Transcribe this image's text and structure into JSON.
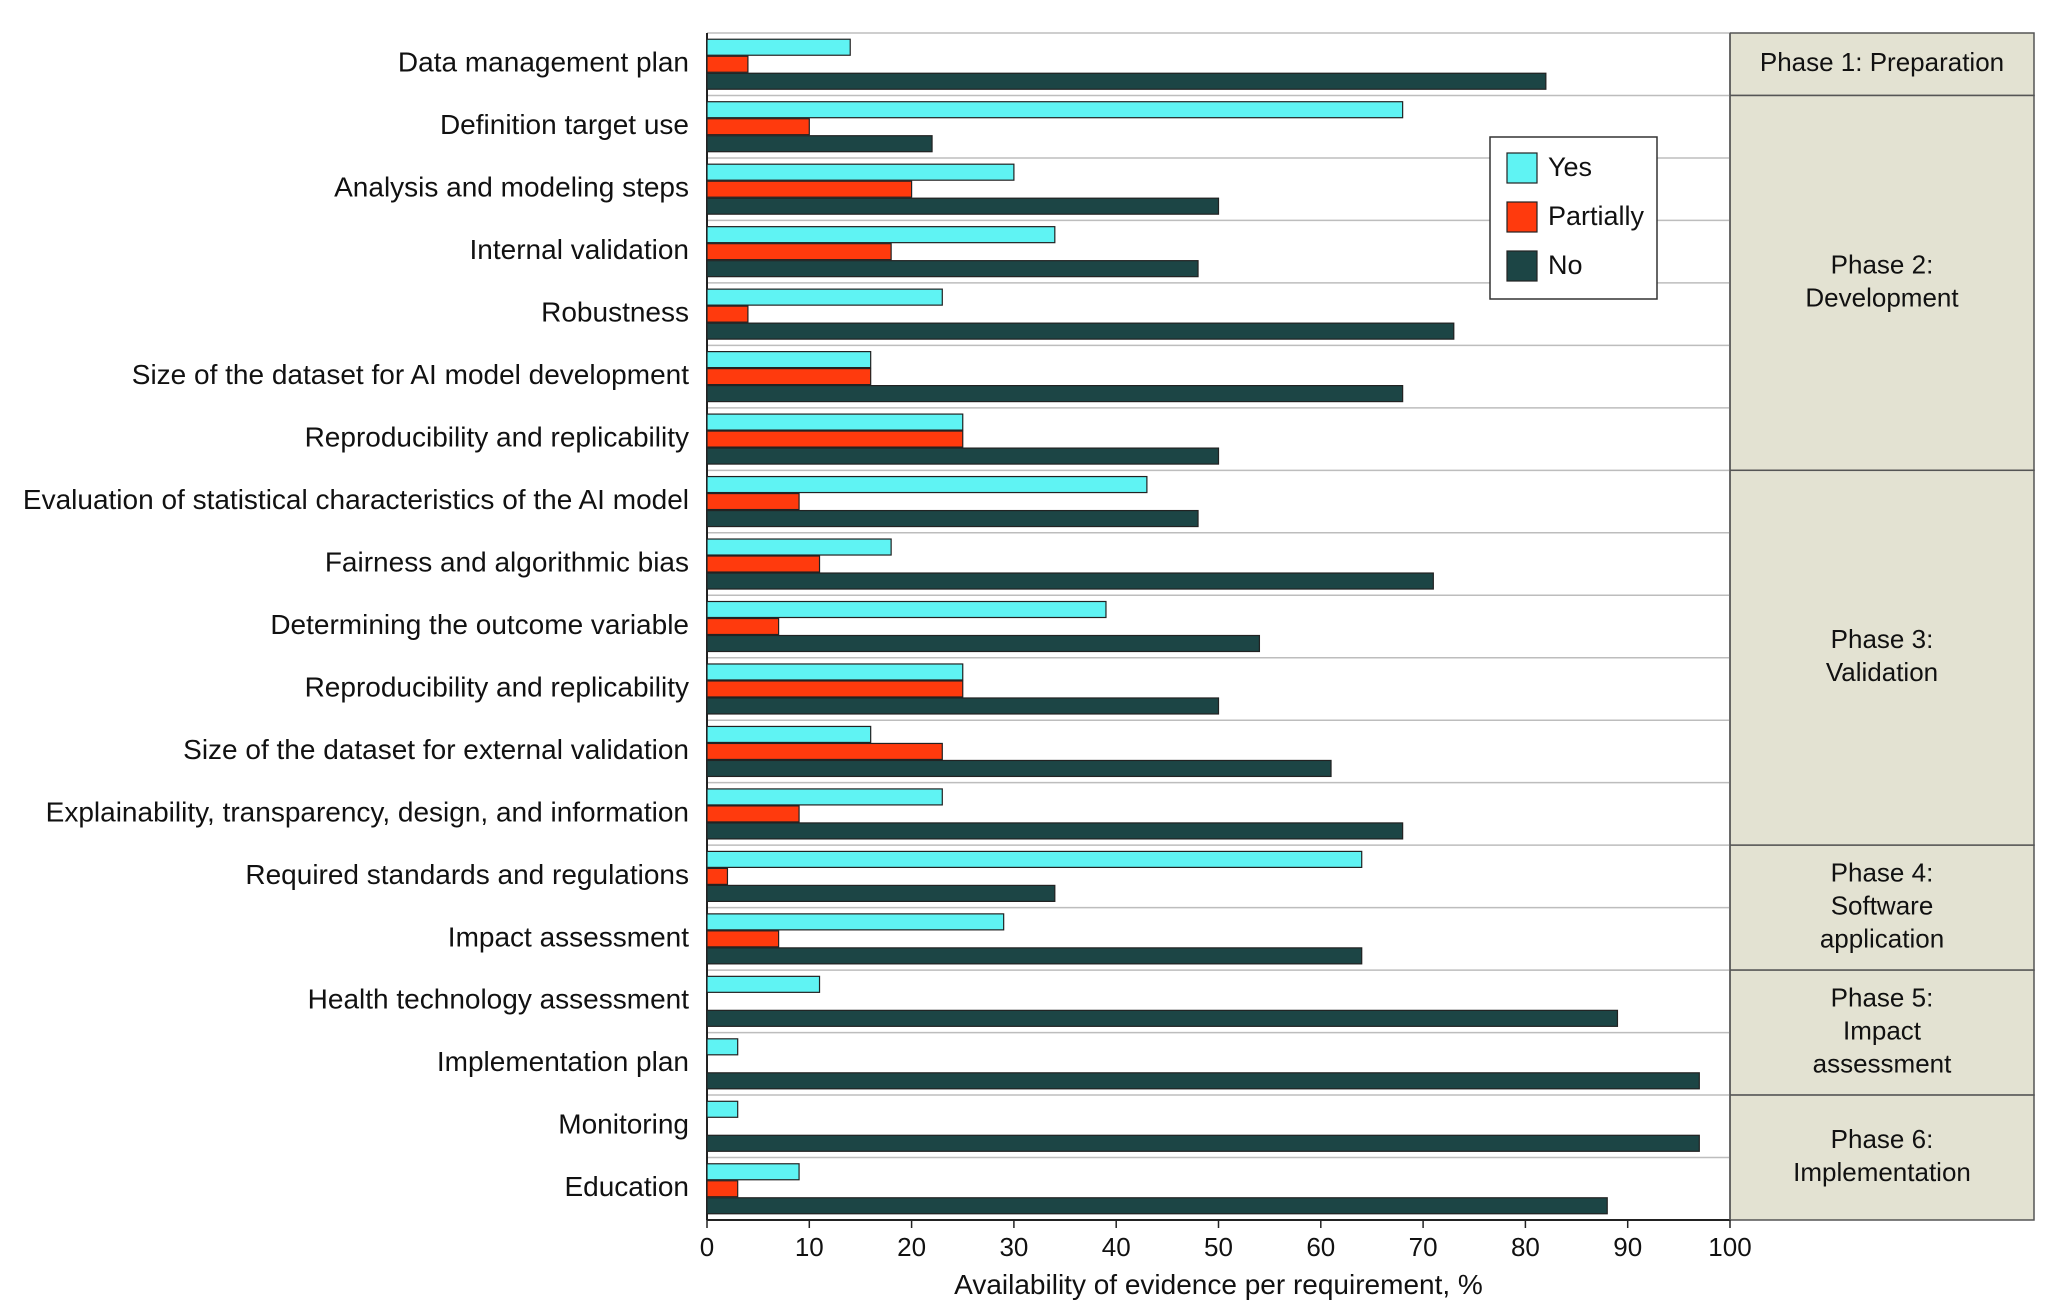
{
  "chart_data": {
    "type": "bar",
    "orientation": "horizontal",
    "title": "",
    "xlabel": "Availability of evidence per requirement, %",
    "ylabel": "",
    "xlim": [
      0,
      100
    ],
    "xticks": [
      0,
      10,
      20,
      30,
      40,
      50,
      60,
      70,
      80,
      90,
      100
    ],
    "grid": true,
    "legend_position": "top-right",
    "categories": [
      "Data management plan",
      "Definition target use",
      "Analysis and modeling steps",
      "Internal validation",
      "Robustness",
      "Size of the dataset for AI model development",
      "Reproducibility and replicability",
      "Evaluation of statistical characteristics of the AI model",
      "Fairness and algorithmic bias",
      "Determining the outcome variable",
      "Reproducibility and replicability",
      "Size of the dataset for external validation",
      "Explainability, transparency, design, and information",
      "Required standards and regulations",
      "Impact assessment",
      "Health technology assessment",
      "Implementation plan",
      "Monitoring",
      "Education"
    ],
    "series": [
      {
        "name": "Yes",
        "color": "#5ff3f3",
        "values": [
          14,
          68,
          30,
          34,
          23,
          16,
          25,
          43,
          18,
          39,
          25,
          16,
          23,
          64,
          29,
          11,
          3,
          3,
          9
        ]
      },
      {
        "name": "Partially",
        "color": "#ff3a0d",
        "values": [
          4,
          10,
          20,
          18,
          4,
          16,
          25,
          9,
          11,
          7,
          25,
          23,
          9,
          2,
          7,
          0,
          0,
          0,
          3
        ]
      },
      {
        "name": "No",
        "color": "#1c4545",
        "values": [
          82,
          22,
          50,
          48,
          73,
          68,
          50,
          48,
          71,
          54,
          50,
          61,
          68,
          34,
          64,
          89,
          97,
          97,
          88
        ]
      }
    ],
    "phases": [
      {
        "label": "Phase 1: Preparation",
        "start": 0,
        "end": 0
      },
      {
        "label": "Phase 2: Development",
        "start": 1,
        "end": 6
      },
      {
        "label": "Phase 3: Validation",
        "start": 7,
        "end": 12
      },
      {
        "label": "Phase 4: Software application",
        "start": 13,
        "end": 14
      },
      {
        "label": "Phase 5: Impact assessment",
        "start": 15,
        "end": 16
      },
      {
        "label": "Phase 6: Implementation",
        "start": 17,
        "end": 18
      }
    ]
  }
}
